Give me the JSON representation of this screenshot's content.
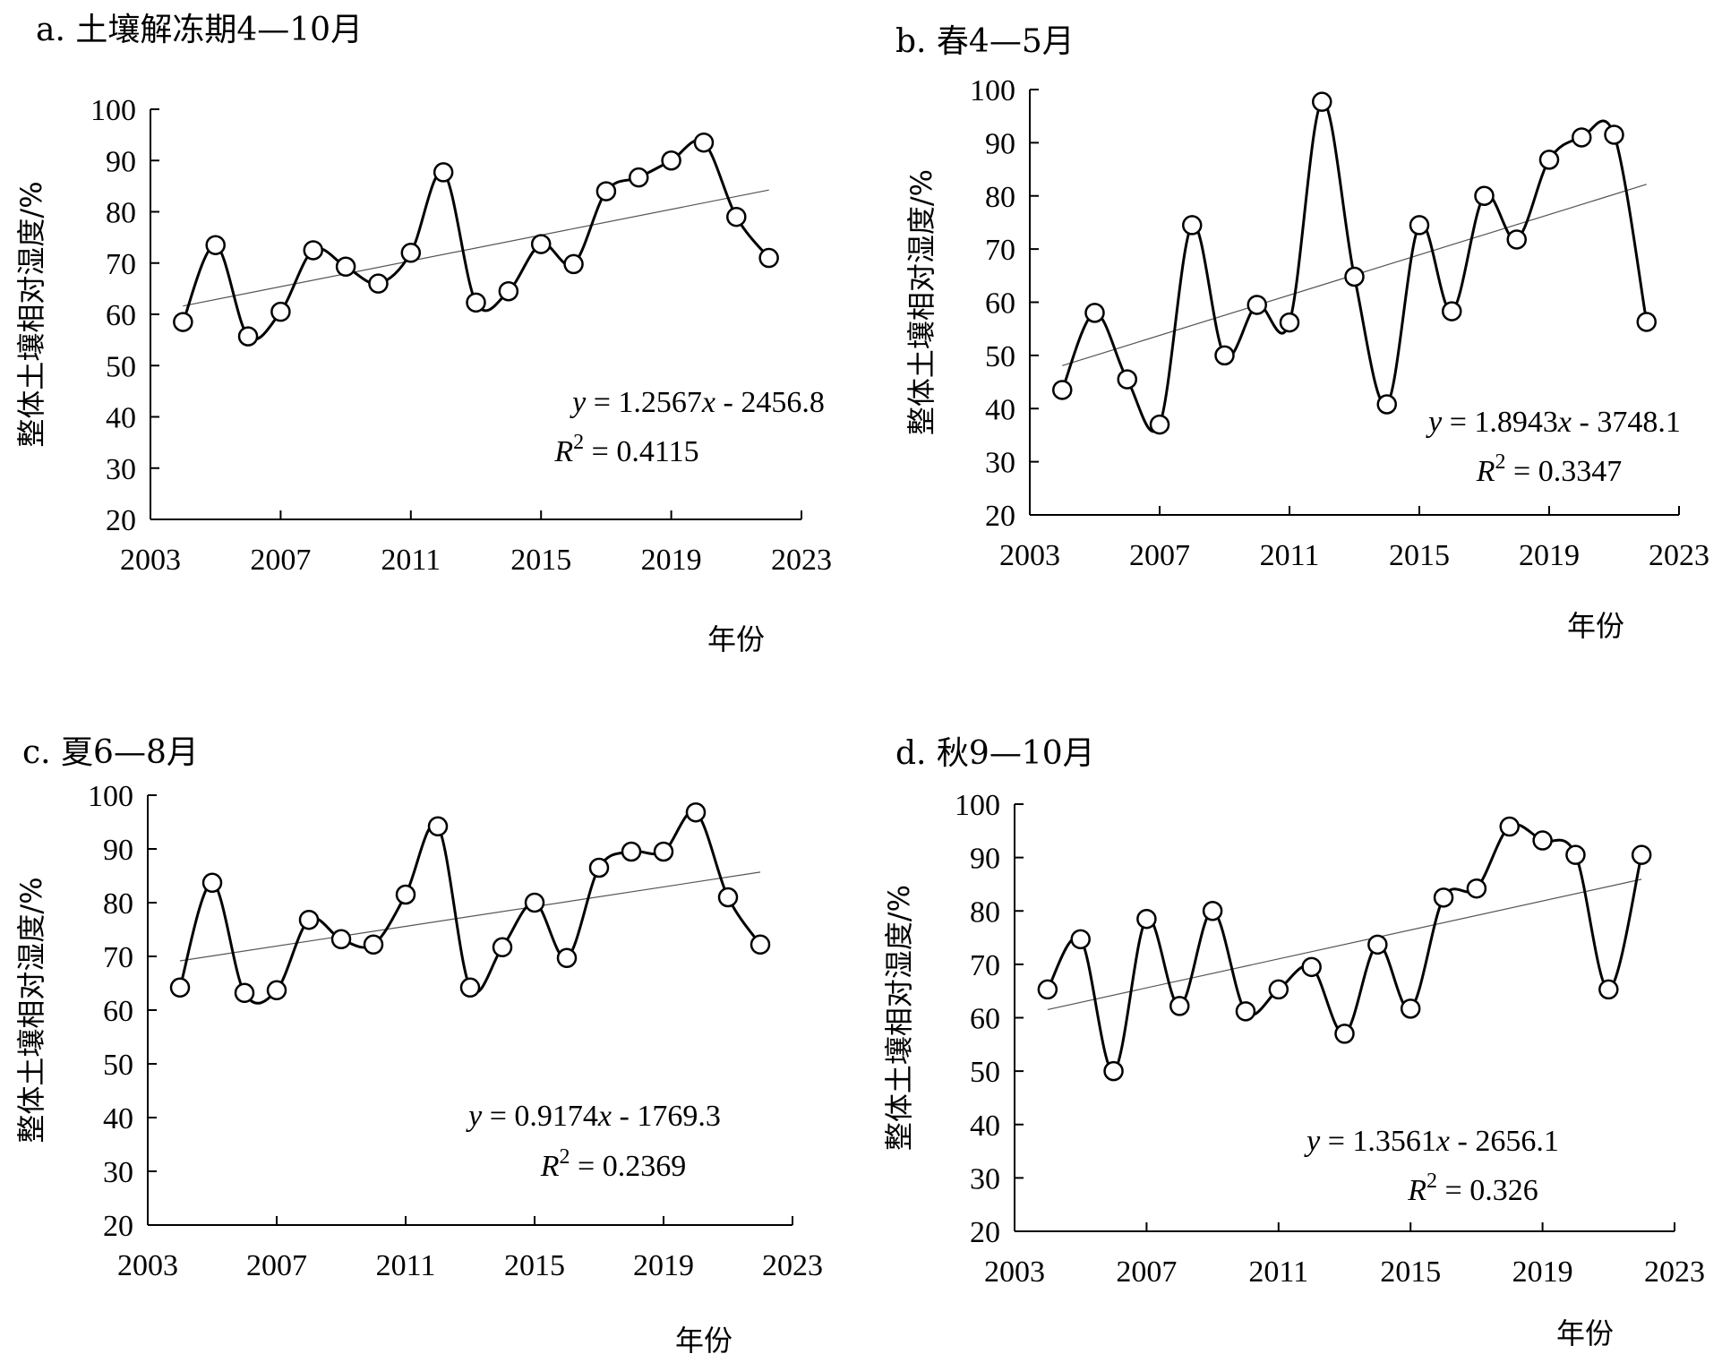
{
  "chart_data": [
    {
      "type": "line",
      "title": "a. 土壤解冻期4—10月",
      "xlabel": "年份",
      "ylabel": "整体土壤相对湿度/%",
      "xlim": [
        2003,
        2023
      ],
      "ylim": [
        20,
        100
      ],
      "xticks": [
        2003,
        2007,
        2011,
        2015,
        2019,
        2023
      ],
      "yticks": [
        20,
        30,
        40,
        50,
        60,
        70,
        80,
        90,
        100
      ],
      "x": [
        2004,
        2005,
        2006,
        2007,
        2008,
        2009,
        2010,
        2011,
        2012,
        2013,
        2014,
        2015,
        2016,
        2017,
        2018,
        2019,
        2020,
        2021,
        2022
      ],
      "series": [
        {
          "values": [
            58.5,
            73.5,
            55.7,
            60.5,
            72.5,
            69.3,
            66,
            72,
            87.7,
            62.3,
            64.5,
            73.7,
            69.8,
            84,
            86.7,
            90,
            93.5,
            79,
            71
          ]
        }
      ],
      "trendline": {
        "slope": 1.2567,
        "intercept": -2456.8
      },
      "equation": {
        "y": "y",
        "eq_rest": " = 1.2567",
        "x": "x",
        "eq_tail": " - 2456.8",
        "r_label": "R",
        "r_sup": "2",
        "r_value": " = 0.4115"
      },
      "grid": false,
      "legend": "none"
    },
    {
      "type": "line",
      "title": "b. 春4—5月",
      "xlabel": "年份",
      "ylabel": "整体土壤相对湿度/%",
      "xlim": [
        2003,
        2023
      ],
      "ylim": [
        20,
        100
      ],
      "xticks": [
        2003,
        2007,
        2011,
        2015,
        2019,
        2023
      ],
      "yticks": [
        20,
        30,
        40,
        50,
        60,
        70,
        80,
        90,
        100
      ],
      "x": [
        2004,
        2005,
        2006,
        2007,
        2008,
        2009,
        2010,
        2011,
        2012,
        2013,
        2014,
        2015,
        2016,
        2017,
        2018,
        2019,
        2020,
        2021,
        2022
      ],
      "series": [
        {
          "values": [
            43.5,
            58,
            45.5,
            37,
            74.5,
            50,
            59.5,
            56.2,
            97.7,
            64.8,
            40.8,
            74.5,
            58.3,
            80,
            71.8,
            86.8,
            91,
            91.5,
            56.3
          ]
        }
      ],
      "trendline": {
        "slope": 1.8943,
        "intercept": -3748.1
      },
      "equation": {
        "y": "y",
        "eq_rest": " = 1.8943",
        "x": "x",
        "eq_tail": " - 3748.1",
        "r_label": "R",
        "r_sup": "2",
        "r_value": " = 0.3347"
      },
      "grid": false,
      "legend": "none"
    },
    {
      "type": "line",
      "title": "c. 夏6—8月",
      "xlabel": "年份",
      "ylabel": "整体土壤相对湿度/%",
      "xlim": [
        2003,
        2023
      ],
      "ylim": [
        20,
        100
      ],
      "xticks": [
        2003,
        2007,
        2011,
        2015,
        2019,
        2023
      ],
      "yticks": [
        20,
        30,
        40,
        50,
        60,
        70,
        80,
        90,
        100
      ],
      "x": [
        2004,
        2005,
        2006,
        2007,
        2008,
        2009,
        2010,
        2011,
        2012,
        2013,
        2014,
        2015,
        2016,
        2017,
        2018,
        2019,
        2020,
        2021,
        2022
      ],
      "series": [
        {
          "values": [
            64.2,
            83.7,
            63.2,
            63.7,
            76.8,
            73.2,
            72.2,
            81.5,
            94.2,
            64.2,
            71.7,
            80,
            69.7,
            86.5,
            89.5,
            89.5,
            96.8,
            81,
            72.2
          ]
        }
      ],
      "trendline": {
        "slope": 0.9174,
        "intercept": -1769.3
      },
      "equation": {
        "y": "y",
        "eq_rest": " = 0.9174",
        "x": "x",
        "eq_tail": " - 1769.3",
        "r_label": "R",
        "r_sup": "2",
        "r_value": " = 0.2369"
      },
      "grid": false,
      "legend": "none"
    },
    {
      "type": "line",
      "title": "d. 秋9—10月",
      "xlabel": "年份",
      "ylabel": "整体土壤相对湿度/%",
      "xlim": [
        2003,
        2023
      ],
      "ylim": [
        20,
        100
      ],
      "xticks": [
        2003,
        2007,
        2011,
        2015,
        2019,
        2023
      ],
      "yticks": [
        20,
        30,
        40,
        50,
        60,
        70,
        80,
        90,
        100
      ],
      "x": [
        2004,
        2005,
        2006,
        2007,
        2008,
        2009,
        2010,
        2011,
        2012,
        2013,
        2014,
        2015,
        2016,
        2017,
        2018,
        2019,
        2020,
        2021,
        2022
      ],
      "series": [
        {
          "values": [
            65.3,
            74.7,
            50,
            78.5,
            62.2,
            80,
            61.2,
            65.3,
            69.5,
            57,
            73.7,
            61.7,
            82.5,
            84.2,
            95.8,
            93.2,
            90.5,
            65.3,
            90.5
          ]
        }
      ],
      "trendline": {
        "slope": 1.3561,
        "intercept": -2656.1
      },
      "equation": {
        "y": "y",
        "eq_rest": " = 1.3561",
        "x": "x",
        "eq_tail": " - 2656.1",
        "r_label": "R",
        "r_sup": "2",
        "r_value": " = 0.326"
      },
      "grid": false,
      "legend": "none"
    }
  ]
}
